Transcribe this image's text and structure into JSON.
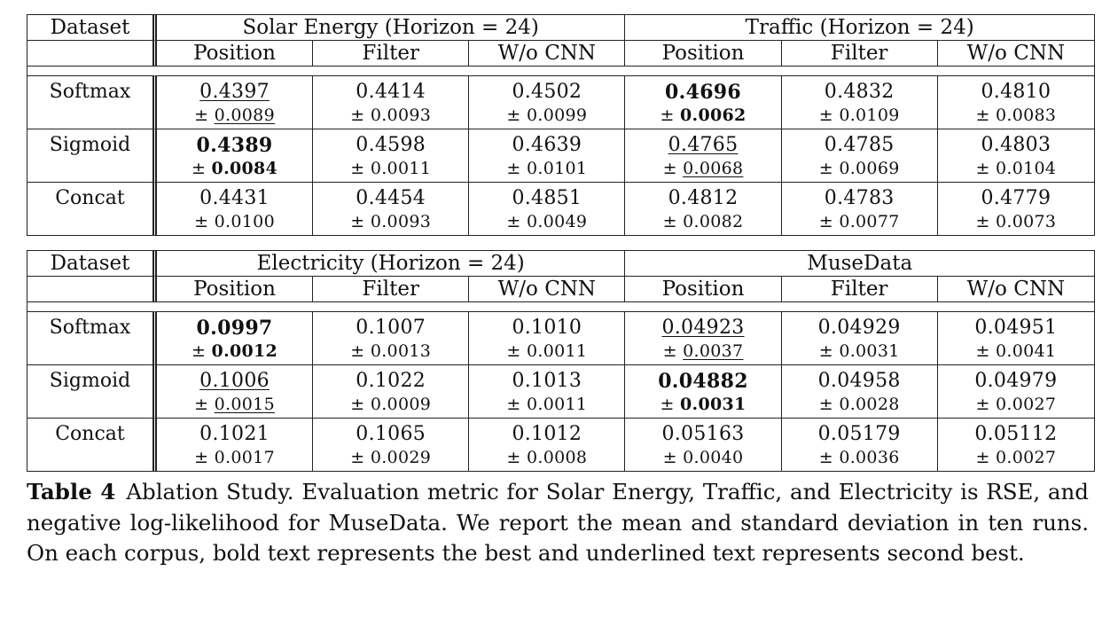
{
  "tables": [
    {
      "groups": [
        "Solar Energy (Horizon = 24)",
        "Traffic (Horizon = 24)"
      ],
      "dataset_label": "Dataset",
      "subheaders": [
        "Position",
        "Filter",
        "W/o CNN",
        "Position",
        "Filter",
        "W/o CNN"
      ],
      "rows": [
        {
          "method": "Softmax",
          "cells": [
            {
              "mean": "0.4397",
              "std": "0.0089",
              "style": "underline"
            },
            {
              "mean": "0.4414",
              "std": "0.0093",
              "style": ""
            },
            {
              "mean": "0.4502",
              "std": "0.0099",
              "style": ""
            },
            {
              "mean": "0.4696",
              "std": "0.0062",
              "style": "bold"
            },
            {
              "mean": "0.4832",
              "std": "0.0109",
              "style": ""
            },
            {
              "mean": "0.4810",
              "std": "0.0083",
              "style": ""
            }
          ]
        },
        {
          "method": "Sigmoid",
          "cells": [
            {
              "mean": "0.4389",
              "std": "0.0084",
              "style": "bold"
            },
            {
              "mean": "0.4598",
              "std": "0.0011",
              "style": ""
            },
            {
              "mean": "0.4639",
              "std": "0.0101",
              "style": ""
            },
            {
              "mean": "0.4765",
              "std": "0.0068",
              "style": "underline"
            },
            {
              "mean": "0.4785",
              "std": "0.0069",
              "style": ""
            },
            {
              "mean": "0.4803",
              "std": "0.0104",
              "style": ""
            }
          ]
        },
        {
          "method": "Concat",
          "cells": [
            {
              "mean": "0.4431",
              "std": "0.0100",
              "style": ""
            },
            {
              "mean": "0.4454",
              "std": "0.0093",
              "style": ""
            },
            {
              "mean": "0.4851",
              "std": "0.0049",
              "style": ""
            },
            {
              "mean": "0.4812",
              "std": "0.0082",
              "style": ""
            },
            {
              "mean": "0.4783",
              "std": "0.0077",
              "style": ""
            },
            {
              "mean": "0.4779",
              "std": "0.0073",
              "style": ""
            }
          ]
        }
      ]
    },
    {
      "groups": [
        "Electricity (Horizon = 24)",
        "MuseData"
      ],
      "dataset_label": "Dataset",
      "subheaders": [
        "Position",
        "Filter",
        "W/o CNN",
        "Position",
        "Filter",
        "W/o CNN"
      ],
      "rows": [
        {
          "method": "Softmax",
          "cells": [
            {
              "mean": "0.0997",
              "std": "0.0012",
              "style": "bold"
            },
            {
              "mean": "0.1007",
              "std": "0.0013",
              "style": ""
            },
            {
              "mean": "0.1010",
              "std": "0.0011",
              "style": ""
            },
            {
              "mean": "0.04923",
              "std": "0.0037",
              "style": "underline"
            },
            {
              "mean": "0.04929",
              "std": "0.0031",
              "style": ""
            },
            {
              "mean": "0.04951",
              "std": "0.0041",
              "style": ""
            }
          ]
        },
        {
          "method": "Sigmoid",
          "cells": [
            {
              "mean": "0.1006",
              "std": "0.0015",
              "style": "underline"
            },
            {
              "mean": "0.1022",
              "std": "0.0009",
              "style": ""
            },
            {
              "mean": "0.1013",
              "std": "0.0011",
              "style": ""
            },
            {
              "mean": "0.04882",
              "std": "0.0031",
              "style": "bold"
            },
            {
              "mean": "0.04958",
              "std": "0.0028",
              "style": ""
            },
            {
              "mean": "0.04979",
              "std": "0.0027",
              "style": ""
            }
          ]
        },
        {
          "method": "Concat",
          "cells": [
            {
              "mean": "0.1021",
              "std": "0.0017",
              "style": ""
            },
            {
              "mean": "0.1065",
              "std": "0.0029",
              "style": ""
            },
            {
              "mean": "0.1012",
              "std": "0.0008",
              "style": ""
            },
            {
              "mean": "0.05163",
              "std": "0.0040",
              "style": ""
            },
            {
              "mean": "0.05179",
              "std": "0.0036",
              "style": ""
            },
            {
              "mean": "0.05112",
              "std": "0.0027",
              "style": ""
            }
          ]
        }
      ]
    }
  ],
  "pm_symbol": "±",
  "caption": {
    "label": "Table 4",
    "text": "Ablation Study. Evaluation metric for Solar Energy, Traffic, and Electricity is RSE, and negative log-likelihood for MuseData. We report the mean and standard deviation in ten runs. On each corpus, bold text represents the best and underlined text represents second best."
  }
}
